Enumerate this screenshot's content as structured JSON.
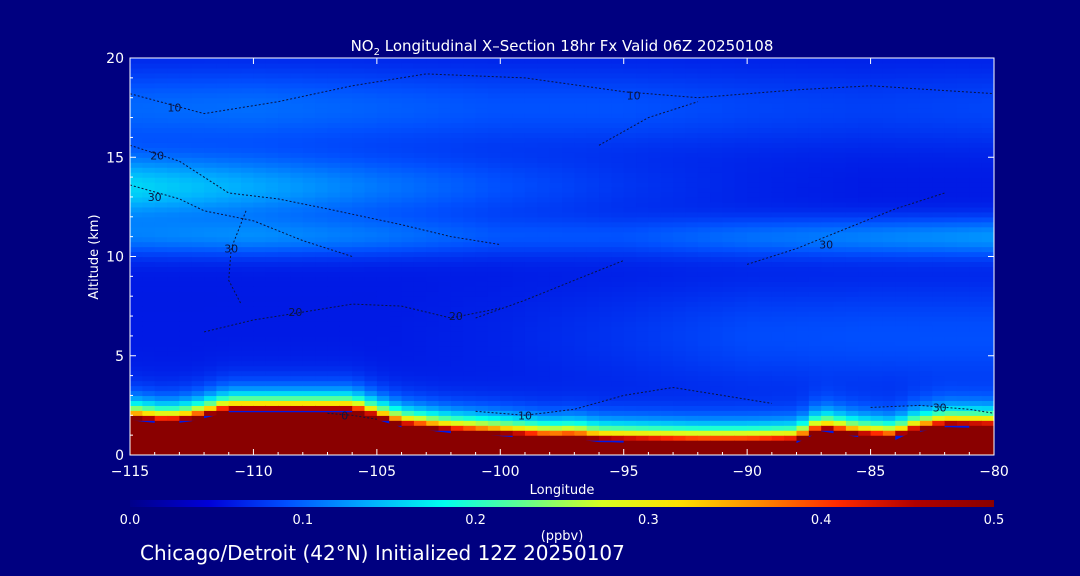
{
  "chart_data": {
    "type": "heatmap",
    "title_prefix": "NO",
    "title_subscript": "2",
    "title_suffix": " Longitudinal X–Section 18hr  Fx Valid 06Z 20250108",
    "xlabel": "Longitude",
    "ylabel": "Altitude (km)",
    "xlim": [
      -115,
      -80
    ],
    "ylim": [
      0,
      20
    ],
    "x_ticks": [
      -115,
      -110,
      -105,
      -100,
      -95,
      -90,
      -85,
      -80
    ],
    "x_tick_labels": [
      "−115",
      "−110",
      "−105",
      "−100",
      "−95",
      "−90",
      "−85",
      "−80"
    ],
    "y_ticks": [
      0,
      5,
      10,
      15,
      20
    ],
    "y_tick_labels": [
      "0",
      "5",
      "10",
      "15",
      "20"
    ],
    "colorbar": {
      "min": 0.0,
      "max": 0.5,
      "ticks": [
        0.0,
        0.1,
        0.2,
        0.3,
        0.4,
        0.5
      ],
      "tick_labels": [
        "0.0",
        "0.1",
        "0.2",
        "0.3",
        "0.4",
        "0.5"
      ],
      "unit": "(ppbv)",
      "colors": [
        "#00008a",
        "#0000d8",
        "#0050ff",
        "#00aaff",
        "#00ffee",
        "#60ff90",
        "#d8ff20",
        "#ffe000",
        "#ff8a00",
        "#ff2a00",
        "#b00000",
        "#8a0000"
      ]
    },
    "field": {
      "background": 0.06,
      "bands": [
        {
          "alt_center": 11.0,
          "alt_width": 1.0,
          "lon_weights": [
            0.45,
            0.55,
            0.45,
            0.3,
            0.3,
            0.45,
            0.55,
            0.65
          ],
          "amp": 0.1
        },
        {
          "alt_center": 13.5,
          "alt_width": 1.6,
          "lon_weights": [
            1.0,
            0.75,
            0.5,
            0.3,
            0.15,
            0.05,
            0.0,
            0.0
          ],
          "amp": 0.1
        },
        {
          "alt_center": 17.5,
          "alt_width": 2.0,
          "lon_weights": [
            0.6,
            0.65,
            0.55,
            0.45,
            0.45,
            0.35,
            0.3,
            0.35
          ],
          "amp": 0.07
        },
        {
          "alt_center": 6.0,
          "alt_width": 2.6,
          "lon_weights": [
            0.0,
            0.0,
            0.0,
            0.1,
            0.3,
            0.55,
            0.6,
            0.6
          ],
          "amp": 0.05
        }
      ],
      "pbl_peak": 0.6,
      "pbl_depth": 0.55
    },
    "terrain": {
      "lon": [
        -115,
        -113.5,
        -112.5,
        -111,
        -108,
        -106,
        -104,
        -102,
        -100,
        -98,
        -97,
        -96,
        -94,
        -92,
        -90,
        -88,
        -87,
        -85.5,
        -84,
        -83.5,
        -82,
        -80
      ],
      "alt": [
        1.75,
        1.55,
        1.7,
        2.15,
        2.15,
        2.15,
        1.4,
        1.1,
        0.95,
        0.75,
        0.8,
        0.65,
        0.6,
        0.55,
        0.55,
        0.6,
        1.2,
        0.9,
        0.75,
        1.05,
        1.4,
        1.35
      ]
    },
    "contours": [
      {
        "label": "10",
        "label_lon": -113.2,
        "label_alt": 17.5,
        "points": [
          [
            -115,
            18.2
          ],
          [
            -112,
            17.2
          ],
          [
            -109,
            17.8
          ],
          [
            -106,
            18.6
          ],
          [
            -103,
            19.2
          ],
          [
            -99,
            19.0
          ],
          [
            -95,
            18.3
          ],
          [
            -92,
            18.0
          ],
          [
            -88,
            18.4
          ],
          [
            -85,
            18.6
          ],
          [
            -80,
            18.2
          ]
        ]
      },
      {
        "label": "10",
        "label_lon": -94.6,
        "label_alt": 18.1,
        "points": [
          [
            -96,
            15.6
          ],
          [
            -94,
            17.0
          ],
          [
            -92,
            17.8
          ]
        ]
      },
      {
        "label": "20",
        "label_lon": -113.9,
        "label_alt": 15.1,
        "points": [
          [
            -115,
            15.6
          ],
          [
            -113,
            14.8
          ],
          [
            -111,
            13.2
          ],
          [
            -109,
            12.9
          ],
          [
            -107,
            12.4
          ],
          [
            -104,
            11.6
          ],
          [
            -102,
            11.0
          ],
          [
            -100,
            10.6
          ]
        ]
      },
      {
        "label": "30",
        "label_lon": -114.0,
        "label_alt": 13.0,
        "points": [
          [
            -115,
            13.6
          ],
          [
            -113,
            12.9
          ],
          [
            -112,
            12.3
          ],
          [
            -110,
            11.8
          ],
          [
            -108,
            10.8
          ],
          [
            -106,
            10.0
          ]
        ]
      },
      {
        "label": "30",
        "label_lon": -110.9,
        "label_alt": 10.4,
        "points": [
          [
            -110.3,
            12.3
          ],
          [
            -110.9,
            10.4
          ],
          [
            -111.0,
            8.8
          ],
          [
            -110.5,
            7.6
          ]
        ]
      },
      {
        "label": "30",
        "label_lon": -86.8,
        "label_alt": 10.6,
        "points": [
          [
            -90,
            9.6
          ],
          [
            -88,
            10.4
          ],
          [
            -86,
            11.4
          ],
          [
            -84,
            12.4
          ],
          [
            -82,
            13.2
          ]
        ]
      },
      {
        "label": "20",
        "label_lon": -108.3,
        "label_alt": 7.2,
        "points": [
          [
            -112,
            6.2
          ],
          [
            -110,
            6.8
          ],
          [
            -108,
            7.2
          ],
          [
            -106,
            7.6
          ],
          [
            -104,
            7.5
          ],
          [
            -102,
            6.9
          ],
          [
            -100,
            7.4
          ]
        ]
      },
      {
        "label": "20",
        "label_lon": -101.8,
        "label_alt": 7.0,
        "points": [
          [
            -101,
            6.9
          ],
          [
            -99,
            7.8
          ],
          [
            -97,
            8.8
          ],
          [
            -95,
            9.8
          ]
        ]
      },
      {
        "label": "10",
        "label_lon": -99.0,
        "label_alt": 2.0,
        "points": [
          [
            -101,
            2.2
          ],
          [
            -99,
            2.0
          ],
          [
            -97,
            2.3
          ],
          [
            -95,
            3.0
          ],
          [
            -93,
            3.4
          ],
          [
            -91,
            3.0
          ],
          [
            -89,
            2.6
          ]
        ]
      },
      {
        "label": "30",
        "label_lon": -82.2,
        "label_alt": 2.4,
        "points": [
          [
            -85,
            2.4
          ],
          [
            -83,
            2.5
          ],
          [
            -81,
            2.3
          ],
          [
            -80,
            2.1
          ]
        ]
      },
      {
        "label": "0",
        "label_lon": -106.3,
        "label_alt": 2.0,
        "points": [
          [
            -107,
            2.1
          ],
          [
            -106,
            2.0
          ],
          [
            -105,
            1.8
          ]
        ]
      }
    ]
  },
  "footer": "Chicago/Detroit (42°N) Initialized 12Z 20250107"
}
